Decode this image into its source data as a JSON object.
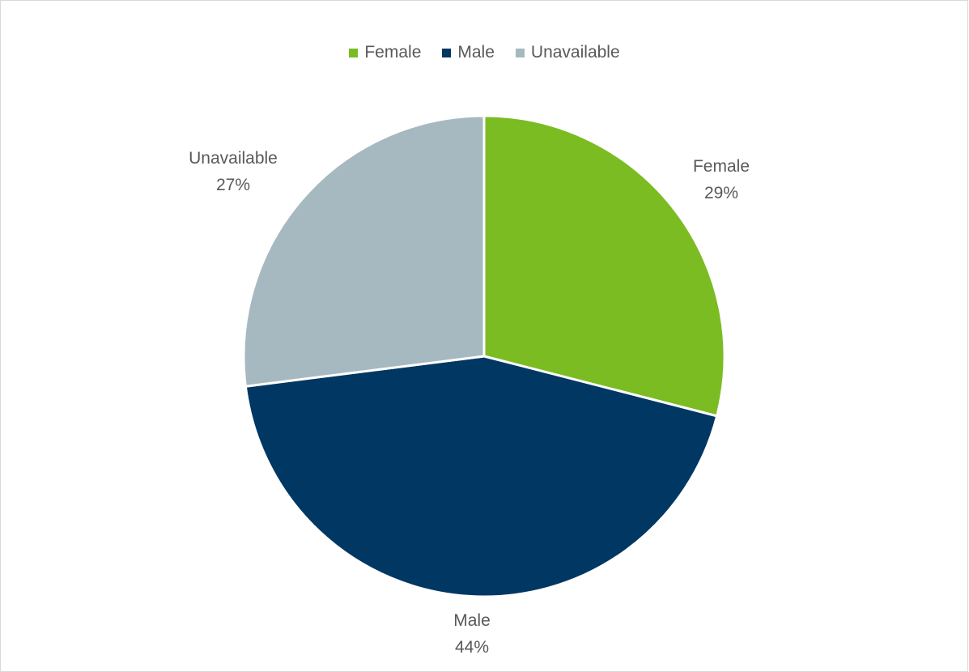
{
  "chart_data": {
    "type": "pie",
    "title": "",
    "legend_position": "top",
    "categories": [
      "Female",
      "Male",
      "Unavailable"
    ],
    "values": [
      29,
      44,
      27
    ],
    "value_labels": [
      "29%",
      "44%",
      "27%"
    ],
    "colors": [
      "#7ABC22",
      "#003763",
      "#A6B9C0"
    ]
  }
}
